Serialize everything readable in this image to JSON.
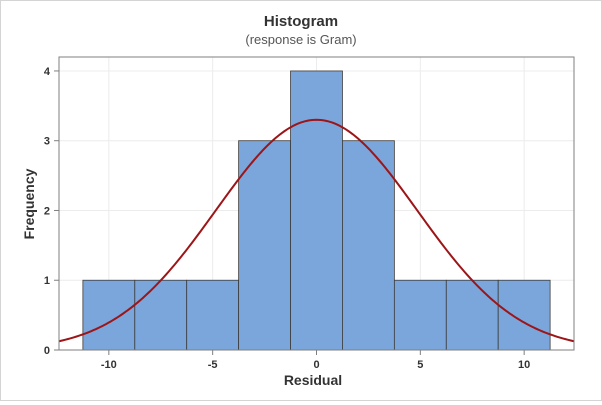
{
  "chart_data": {
    "type": "bar",
    "title": "Histogram",
    "subtitle": "(response is Gram)",
    "xlabel": "Residual",
    "ylabel": "Frequency",
    "bin_width": 2.5,
    "bins": [
      {
        "start": -11.25,
        "end": -8.75,
        "count": 1
      },
      {
        "start": -8.75,
        "end": -6.25,
        "count": 1
      },
      {
        "start": -6.25,
        "end": -3.75,
        "count": 1
      },
      {
        "start": -3.75,
        "end": -1.25,
        "count": 3
      },
      {
        "start": -1.25,
        "end": 1.25,
        "count": 4
      },
      {
        "start": 1.25,
        "end": 3.75,
        "count": 3
      },
      {
        "start": 3.75,
        "end": 6.25,
        "count": 1
      },
      {
        "start": 6.25,
        "end": 8.75,
        "count": 1
      },
      {
        "start": 8.75,
        "end": 11.25,
        "count": 1
      }
    ],
    "fit_curve": {
      "type": "normal",
      "mean": 0,
      "peak": 3.3,
      "stdev": 4.85
    },
    "xlim": [
      -12.4,
      12.4
    ],
    "ylim": [
      0,
      4.2
    ],
    "xticks": [
      -10,
      -5,
      0,
      5,
      10
    ],
    "xtick_labels": [
      "-10",
      "-5",
      "0",
      "5",
      "10"
    ],
    "yticks": [
      0,
      1,
      2,
      3,
      4
    ],
    "ytick_labels": [
      "0",
      "1",
      "2",
      "3",
      "4"
    ],
    "grid": true,
    "colors": {
      "bar_fill": "#7ba6db",
      "bar_edge": "#3c3c3c",
      "curve": "#9c1518",
      "grid": "#ececec",
      "axis": "#7f7f7f"
    }
  }
}
